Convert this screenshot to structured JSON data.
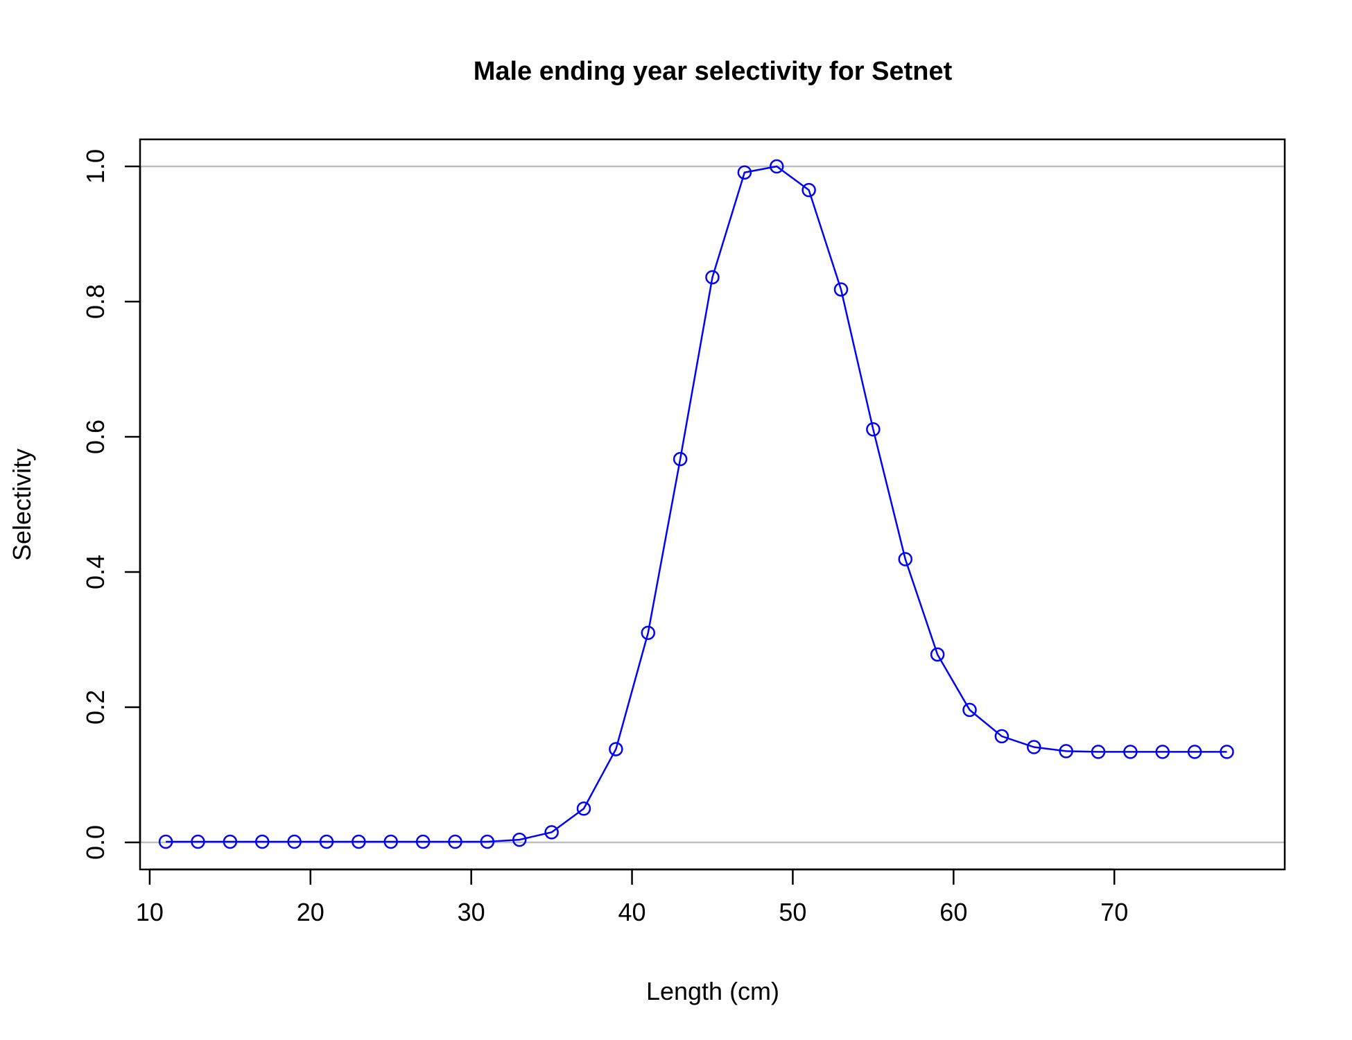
{
  "chart_data": {
    "type": "line",
    "title": "Male ending year selectivity for Setnet",
    "xlabel": "Length (cm)",
    "ylabel": "Selectivity",
    "xlim": [
      9.4,
      80.6
    ],
    "ylim": [
      -0.04,
      1.04
    ],
    "x_ticks": [
      10,
      20,
      30,
      40,
      50,
      60,
      70
    ],
    "y_ticks": [
      0.0,
      0.2,
      0.4,
      0.6,
      0.8,
      1.0
    ],
    "x_tick_labels": [
      "10",
      "20",
      "30",
      "40",
      "50",
      "60",
      "70"
    ],
    "y_tick_labels": [
      "0.0",
      "0.2",
      "0.4",
      "0.6",
      "0.8",
      "1.0"
    ],
    "reference_lines_y": [
      0,
      1
    ],
    "colors": {
      "series": "#0000ff",
      "reference": "#bebebe",
      "axes": "#000000"
    },
    "marker": "open-circle",
    "series": [
      {
        "x": [
          11,
          13,
          15,
          17,
          19,
          21,
          23,
          25,
          27,
          29,
          31,
          33,
          35,
          37,
          39,
          41,
          43,
          45,
          47,
          49,
          51,
          53,
          55,
          57,
          59,
          61,
          63,
          65,
          67,
          69,
          71,
          73,
          75,
          77
        ],
        "y": [
          0.001,
          0.001,
          0.001,
          0.001,
          0.001,
          0.001,
          0.001,
          0.001,
          0.001,
          0.001,
          0.001,
          0.004,
          0.015,
          0.05,
          0.138,
          0.31,
          0.567,
          0.836,
          0.991,
          1.0,
          0.965,
          0.818,
          0.611,
          0.419,
          0.278,
          0.196,
          0.157,
          0.141,
          0.135,
          0.134,
          0.134,
          0.134,
          0.134,
          0.134
        ]
      }
    ]
  }
}
